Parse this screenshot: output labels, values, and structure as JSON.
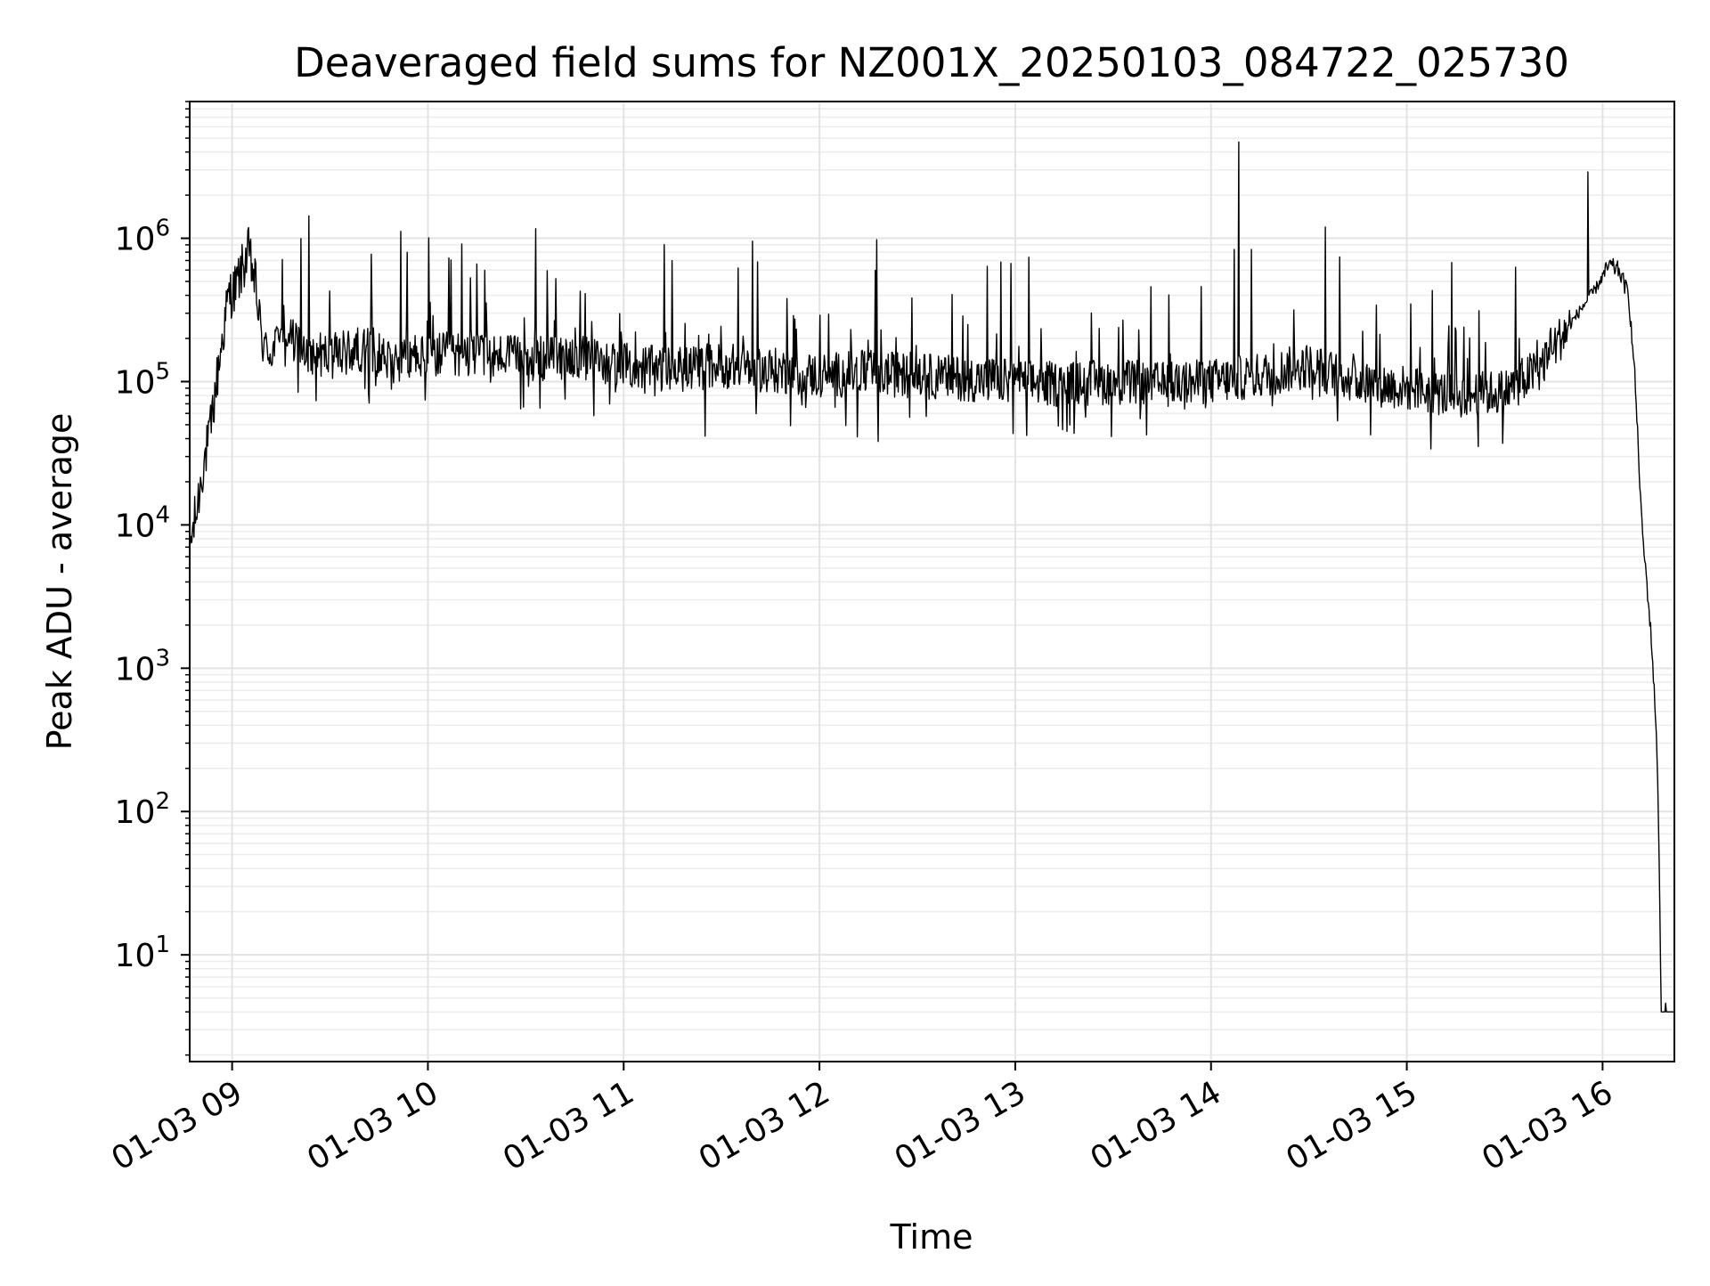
{
  "chart_data": {
    "type": "line",
    "title": "Deaveraged field sums for NZ001X_20250103_084722_025730",
    "xlabel": "Time",
    "ylabel": "Peak ADU - average",
    "xscale": "time",
    "yscale": "log",
    "xlim": [
      "2025-01-03 08:47",
      "2025-01-03 16:22"
    ],
    "ylim": [
      1.8,
      9000000
    ],
    "grid": "major and minor, light grey",
    "legend": "none",
    "line_color": "#000000",
    "x_ticks": [
      "2025-01-03 09:00",
      "2025-01-03 10:00",
      "2025-01-03 11:00",
      "2025-01-03 12:00",
      "2025-01-03 13:00",
      "2025-01-03 14:00",
      "2025-01-03 15:00",
      "2025-01-03 16:00"
    ],
    "x_tick_labels": [
      "01-03 09",
      "01-03 10",
      "01-03 11",
      "01-03 12",
      "01-03 13",
      "01-03 14",
      "01-03 15",
      "01-03 16"
    ],
    "y_ticks": [
      10,
      100,
      1000,
      10000,
      100000,
      1000000
    ],
    "y_tick_labels": [
      {
        "base": "10",
        "exp": "1"
      },
      {
        "base": "10",
        "exp": "2"
      },
      {
        "base": "10",
        "exp": "3"
      },
      {
        "base": "10",
        "exp": "4"
      },
      {
        "base": "10",
        "exp": "5"
      },
      {
        "base": "10",
        "exp": "6"
      }
    ],
    "series": [
      {
        "x": [
          "2025-01-03 08:47",
          "2025-01-03 08:49",
          "2025-01-03 08:51",
          "2025-01-03 08:53",
          "2025-01-03 08:55",
          "2025-01-03 08:57",
          "2025-01-03 08:59",
          "2025-01-03 09:01",
          "2025-01-03 09:03",
          "2025-01-03 09:05",
          "2025-01-03 09:07",
          "2025-01-03 09:09",
          "2025-01-03 09:12",
          "2025-01-03 09:15",
          "2025-01-03 09:20",
          "2025-01-03 09:25",
          "2025-01-03 09:30",
          "2025-01-03 09:40",
          "2025-01-03 09:50",
          "2025-01-03 10:00",
          "2025-01-03 10:15",
          "2025-01-03 10:30",
          "2025-01-03 10:45",
          "2025-01-03 11:00",
          "2025-01-03 11:15",
          "2025-01-03 11:30",
          "2025-01-03 11:45",
          "2025-01-03 12:00",
          "2025-01-03 12:15",
          "2025-01-03 12:30",
          "2025-01-03 12:45",
          "2025-01-03 13:00",
          "2025-01-03 13:15",
          "2025-01-03 13:30",
          "2025-01-03 13:45",
          "2025-01-03 14:00",
          "2025-01-03 14:15",
          "2025-01-03 14:30",
          "2025-01-03 14:45",
          "2025-01-03 15:00",
          "2025-01-03 15:15",
          "2025-01-03 15:30",
          "2025-01-03 15:40",
          "2025-01-03 15:50",
          "2025-01-03 15:58",
          "2025-01-03 16:02",
          "2025-01-03 16:05",
          "2025-01-03 16:08",
          "2025-01-03 16:10",
          "2025-01-03 16:12",
          "2025-01-03 16:14",
          "2025-01-03 16:15",
          "2025-01-03 16:16",
          "2025-01-03 16:17",
          "2025-01-03 16:18",
          "2025-01-03 16:22"
        ],
        "y": [
          7000,
          12000,
          25000,
          40000,
          90000,
          200000,
          400000,
          450000,
          600000,
          800000,
          500000,
          200000,
          150000,
          250000,
          180000,
          160000,
          150000,
          170000,
          140000,
          150000,
          160000,
          140000,
          150000,
          130000,
          120000,
          130000,
          120000,
          110000,
          115000,
          110000,
          105000,
          100000,
          95000,
          100000,
          95000,
          100000,
          110000,
          130000,
          100000,
          90000,
          80000,
          85000,
          120000,
          250000,
          450000,
          650000,
          600000,
          400000,
          100000,
          10000,
          3000,
          1500,
          600,
          150,
          4,
          4
        ]
      }
    ]
  }
}
